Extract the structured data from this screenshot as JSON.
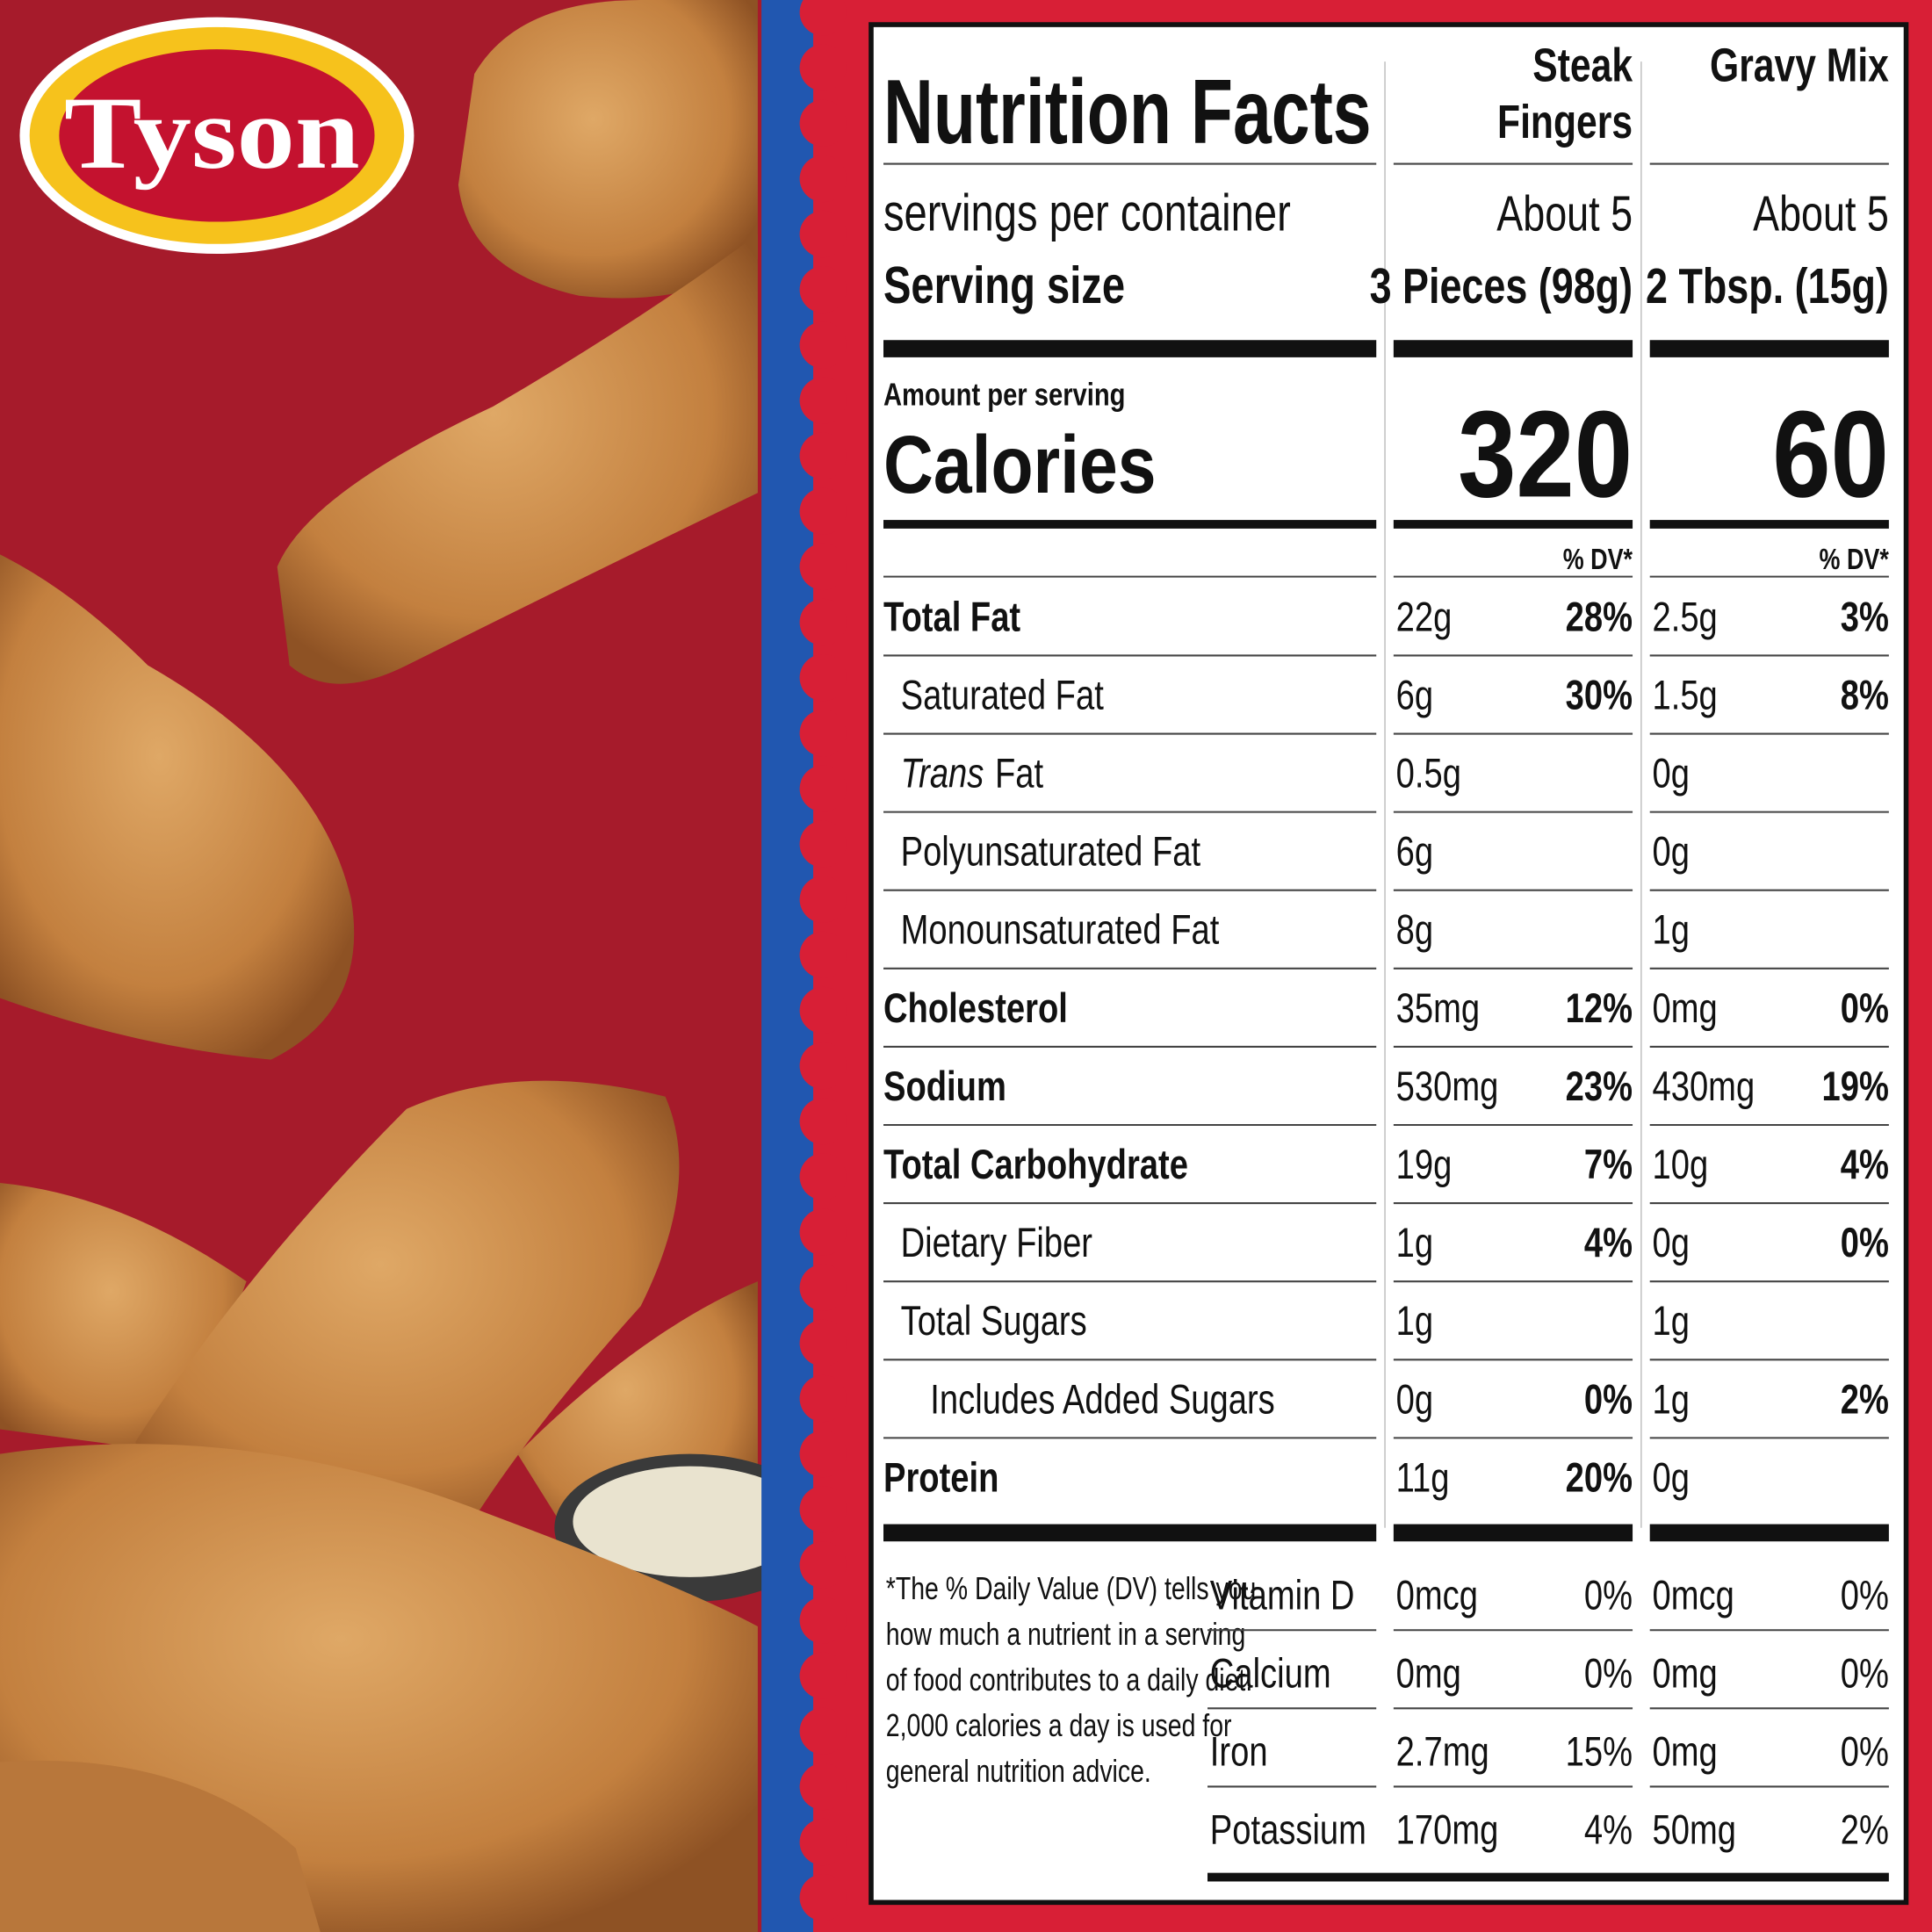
{
  "brand": "Tyson",
  "label": {
    "title": "Nutrition Facts",
    "servings_label": "servings per container",
    "serving_size_label": "Serving size",
    "amount_per_serving": "Amount per serving",
    "calories_label": "Calories",
    "products": [
      {
        "name": [
          "Steak",
          "Fingers"
        ],
        "servings": "About 5",
        "serving_size": "3 Pieces (98g)",
        "calories": 320,
        "dv_header": "% DV*"
      },
      {
        "name": [
          "Gravy Mix"
        ],
        "servings": "About 5",
        "serving_size": "2 Tbsp. (15g)",
        "calories": 60,
        "dv_header": "% DV*"
      }
    ],
    "nutrients": [
      {
        "name": "Total Fat",
        "level": 0,
        "values": [
          {
            "amount": "22g",
            "dv": "28%"
          },
          {
            "amount": "2.5g",
            "dv": "3%"
          }
        ]
      },
      {
        "name": "Saturated Fat",
        "level": 1,
        "values": [
          {
            "amount": "6g",
            "dv": "30%"
          },
          {
            "amount": "1.5g",
            "dv": "8%"
          }
        ]
      },
      {
        "italic": "Trans",
        "name": "Fat",
        "level": 1,
        "values": [
          {
            "amount": "0.5g"
          },
          {
            "amount": "0g"
          }
        ]
      },
      {
        "name": "Polyunsaturated Fat",
        "level": 1,
        "values": [
          {
            "amount": "6g"
          },
          {
            "amount": "0g"
          }
        ]
      },
      {
        "name": "Monounsaturated Fat",
        "level": 1,
        "values": [
          {
            "amount": "8g"
          },
          {
            "amount": "1g"
          }
        ]
      },
      {
        "name": "Cholesterol",
        "level": 0,
        "values": [
          {
            "amount": "35mg",
            "dv": "12%"
          },
          {
            "amount": "0mg",
            "dv": "0%"
          }
        ]
      },
      {
        "name": "Sodium",
        "level": 0,
        "values": [
          {
            "amount": "530mg",
            "dv": "23%"
          },
          {
            "amount": "430mg",
            "dv": "19%"
          }
        ]
      },
      {
        "name": "Total Carbohydrate",
        "level": 0,
        "values": [
          {
            "amount": "19g",
            "dv": "7%"
          },
          {
            "amount": "10g",
            "dv": "4%"
          }
        ]
      },
      {
        "name": "Dietary Fiber",
        "level": 1,
        "values": [
          {
            "amount": "1g",
            "dv": "4%"
          },
          {
            "amount": "0g",
            "dv": "0%"
          }
        ]
      },
      {
        "name": "Total Sugars",
        "level": 1,
        "values": [
          {
            "amount": "1g"
          },
          {
            "amount": "1g"
          }
        ]
      },
      {
        "name": "Includes Added Sugars",
        "level": 2,
        "values": [
          {
            "amount": "0g",
            "dv": "0%"
          },
          {
            "amount": "1g",
            "dv": "2%"
          }
        ]
      },
      {
        "name": "Protein",
        "level": 0,
        "values": [
          {
            "amount": "11g",
            "dv": "20%"
          },
          {
            "amount": "0g"
          }
        ]
      }
    ],
    "footnote": [
      "*The % Daily Value (DV) tells you",
      "how much a nutrient in a serving",
      "of food contributes to a daily diet.",
      "2,000 calories a day is used for",
      "general nutrition advice."
    ],
    "vitamins": [
      {
        "name": "Vitamin D",
        "values": [
          {
            "amount": "0mcg",
            "dv": "0%"
          },
          {
            "amount": "0mcg",
            "dv": "0%"
          }
        ]
      },
      {
        "name": "Calcium",
        "values": [
          {
            "amount": "0mg",
            "dv": "0%"
          },
          {
            "amount": "0mg",
            "dv": "0%"
          }
        ]
      },
      {
        "name": "Iron",
        "values": [
          {
            "amount": "2.7mg",
            "dv": "15%"
          },
          {
            "amount": "0mg",
            "dv": "0%"
          }
        ]
      },
      {
        "name": "Potassium",
        "values": [
          {
            "amount": "170mg",
            "dv": "4%"
          },
          {
            "amount": "50mg",
            "dv": "2%"
          }
        ]
      }
    ]
  }
}
